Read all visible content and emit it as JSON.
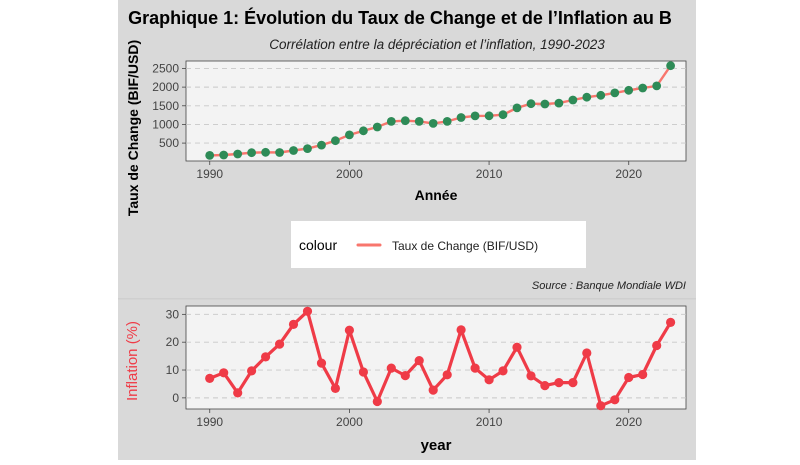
{
  "title": "Graphique 1: Évolution du Taux de Change et de l’Inflation au B",
  "subtitle": "Corrélation entre la dépréciation et l’inflation, 1990-2023",
  "source": "Source : Banque Mondiale WDI",
  "colors": {
    "outer_bg": "#d9d9d9",
    "panel_bg": "#f3f3f3",
    "grid": "#c8c8c8",
    "exchange_line": "#f8766d",
    "exchange_points": "#2e8b57",
    "inflation": "#ef3b47"
  },
  "legend": {
    "title": "colour",
    "entry": "Taux de Change (BIF/USD)",
    "placement": "bottom"
  },
  "chart_data": [
    {
      "type": "line",
      "title": "Graphique 1: Évolution du Taux de Change et de l’Inflation au B",
      "subtitle": "Corrélation entre la dépréciation et l’inflation, 1990-2023",
      "xlabel": "Année",
      "ylabel": "Taux de Change (BIF/USD)",
      "xlim": [
        1988.3,
        2024.1
      ],
      "ylim": [
        20,
        2700
      ],
      "x_ticks": [
        1990,
        2000,
        2010,
        2020
      ],
      "y_ticks": [
        500,
        1000,
        1500,
        2000,
        2500
      ],
      "grid": "horizontal dashed",
      "x": [
        1990,
        1991,
        1992,
        1993,
        1994,
        1995,
        1996,
        1997,
        1998,
        1999,
        2000,
        2001,
        2002,
        2003,
        2004,
        2005,
        2006,
        2007,
        2008,
        2009,
        2010,
        2011,
        2012,
        2013,
        2014,
        2015,
        2016,
        2017,
        2018,
        2019,
        2020,
        2021,
        2022,
        2023
      ],
      "series": [
        {
          "name": "Taux de Change (BIF/USD)",
          "values": [
            171,
            181,
            208,
            242,
            252,
            249,
            302,
            352,
            447,
            563,
            720,
            830,
            930,
            1082,
            1101,
            1081,
            1028,
            1082,
            1185,
            1230,
            1231,
            1261,
            1442,
            1555,
            1547,
            1571,
            1654,
            1730,
            1782,
            1845,
            1915,
            1976,
            2034,
            2575
          ]
        }
      ]
    },
    {
      "type": "line",
      "xlabel": "year",
      "ylabel": "Inflation (%)",
      "xlim": [
        1988.3,
        2024.1
      ],
      "ylim": [
        -4,
        33
      ],
      "x_ticks": [
        1990,
        2000,
        2010,
        2020
      ],
      "y_ticks": [
        0,
        10,
        20,
        30
      ],
      "grid": "horizontal dashed",
      "x": [
        1990,
        1991,
        1992,
        1993,
        1994,
        1995,
        1996,
        1997,
        1998,
        1999,
        2000,
        2001,
        2002,
        2003,
        2004,
        2005,
        2006,
        2007,
        2008,
        2009,
        2010,
        2011,
        2012,
        2013,
        2014,
        2015,
        2016,
        2017,
        2018,
        2019,
        2020,
        2021,
        2022,
        2023
      ],
      "series": [
        {
          "values": [
            7,
            9,
            1.8,
            9.7,
            14.7,
            19.3,
            26.4,
            31.1,
            12.5,
            3.4,
            24.3,
            9.3,
            -1.3,
            10.7,
            8,
            13.4,
            2.8,
            8.3,
            24.4,
            10.7,
            6.5,
            9.7,
            18.2,
            7.9,
            4.4,
            5.5,
            5.5,
            16.1,
            -2.8,
            -0.7,
            7.3,
            8.4,
            18.8,
            27.1
          ]
        }
      ]
    }
  ]
}
